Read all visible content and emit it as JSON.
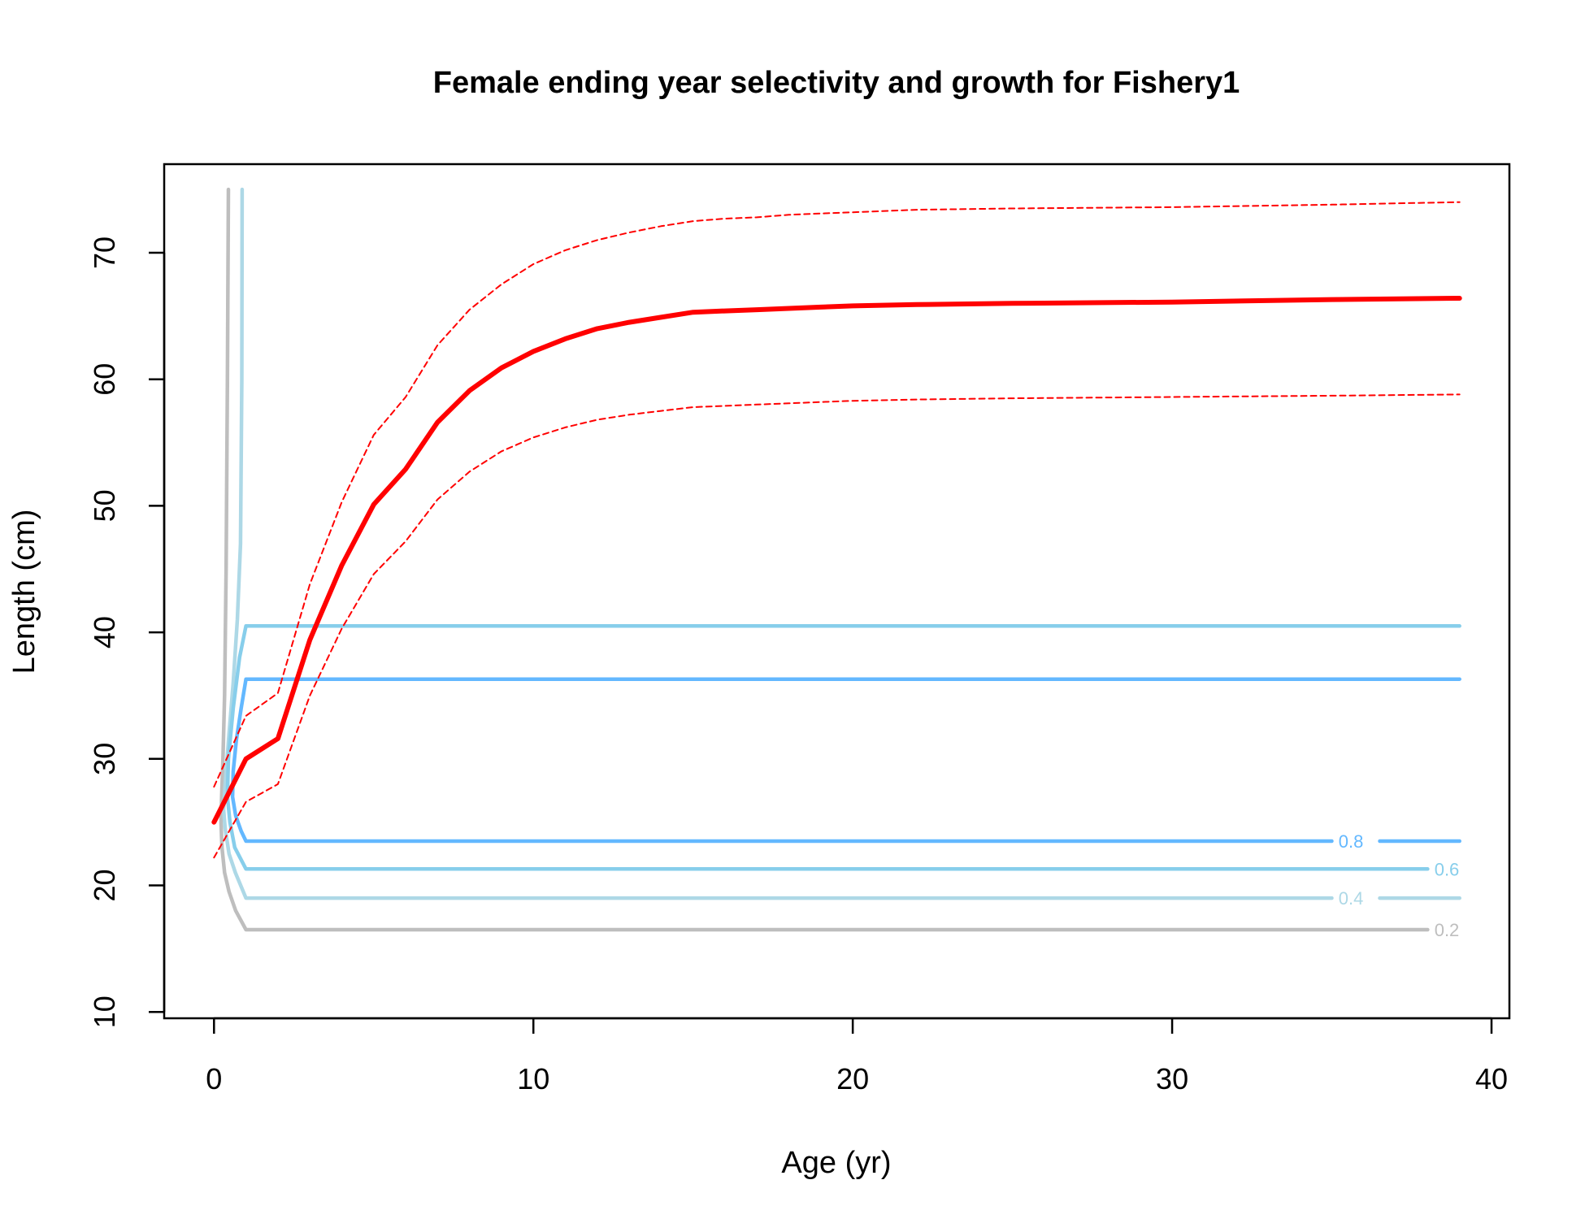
{
  "chart_data": {
    "type": "line",
    "title": "Female ending year selectivity and growth for Fishery1",
    "xlabel": "Age (yr)",
    "ylabel": "Length (cm)",
    "xlim": [
      -1.56,
      40.56
    ],
    "ylim": [
      9.5,
      77.0
    ],
    "xticks": [
      0,
      10,
      20,
      30,
      40
    ],
    "yticks": [
      10,
      20,
      30,
      40,
      50,
      60,
      70
    ],
    "grid": false,
    "legend": "none",
    "growth": {
      "mean": {
        "color": "#ff0000",
        "x": [
          0,
          1,
          2,
          3,
          4,
          5,
          6,
          7,
          8,
          9,
          10,
          11,
          12,
          13,
          14,
          15,
          16,
          17,
          18,
          19,
          20,
          22,
          25,
          30,
          35,
          39
        ],
        "y": [
          25.0,
          30.0,
          31.6,
          39.4,
          45.3,
          50.1,
          52.9,
          56.6,
          59.1,
          60.9,
          62.2,
          63.2,
          64.0,
          64.5,
          64.9,
          65.3,
          65.4,
          65.5,
          65.6,
          65.7,
          65.8,
          65.9,
          66.0,
          66.1,
          66.3,
          66.4
        ]
      },
      "upper": {
        "color": "#ff0000",
        "x": [
          0,
          1,
          2,
          3,
          4,
          5,
          6,
          7,
          8,
          9,
          10,
          11,
          12,
          13,
          14,
          15,
          16,
          17,
          18,
          19,
          20,
          22,
          25,
          30,
          35,
          39
        ],
        "y": [
          27.8,
          33.4,
          35.2,
          43.8,
          50.3,
          55.6,
          58.6,
          62.7,
          65.5,
          67.5,
          69.1,
          70.2,
          71.0,
          71.6,
          72.1,
          72.5,
          72.7,
          72.8,
          73.0,
          73.1,
          73.2,
          73.4,
          73.5,
          73.6,
          73.8,
          74.0
        ]
      },
      "lower": {
        "color": "#ff0000",
        "x": [
          0,
          1,
          2,
          3,
          4,
          5,
          6,
          7,
          8,
          9,
          10,
          11,
          12,
          13,
          14,
          15,
          16,
          17,
          18,
          19,
          20,
          22,
          25,
          30,
          35,
          39
        ],
        "y": [
          22.2,
          26.6,
          28.0,
          35.0,
          40.3,
          44.6,
          47.2,
          50.5,
          52.7,
          54.3,
          55.4,
          56.2,
          56.8,
          57.2,
          57.5,
          57.8,
          57.9,
          58.0,
          58.1,
          58.2,
          58.3,
          58.4,
          58.5,
          58.6,
          58.7,
          58.8
        ]
      }
    },
    "selectivity_contours": [
      {
        "level": "0.2",
        "color": "#bebebe",
        "x": [
          0.45,
          0.42,
          0.38,
          0.33,
          0.28,
          0.24,
          0.22,
          0.25,
          0.33,
          0.47,
          0.68,
          1.0,
          38.0
        ],
        "y": [
          75.0,
          60.0,
          45.0,
          35.0,
          30.0,
          27.0,
          25.0,
          23.0,
          21.0,
          19.5,
          18.0,
          16.5,
          16.5
        ],
        "label_x": 38.6,
        "label_y": 16.5
      },
      {
        "level": "0.4",
        "color": "#add8e6",
        "x": [
          0.88,
          0.87,
          0.83,
          0.73,
          0.6,
          0.47,
          0.35,
          0.3,
          0.35,
          0.47,
          0.67,
          1.0,
          35.0
        ],
        "y": [
          75.0,
          60.0,
          47.0,
          41.0,
          36.0,
          32.0,
          28.0,
          26.0,
          24.5,
          22.5,
          21.0,
          19.0,
          19.0
        ],
        "label_x": 35.6,
        "label_y": 19.0
      },
      {
        "level": "0.4",
        "color": "#add8e6",
        "x": [
          36.5,
          39.0
        ],
        "y": [
          19.0,
          19.0
        ]
      },
      {
        "level": "0.6",
        "color": "#87ceeb",
        "x": [
          39.0,
          1.0,
          0.8,
          0.6,
          0.45,
          0.42,
          0.5,
          0.65,
          1.0,
          38.0
        ],
        "y": [
          40.5,
          40.5,
          38.0,
          34.0,
          30.0,
          27.0,
          25.0,
          23.0,
          21.3,
          21.3
        ],
        "label_x": 38.6,
        "label_y": 21.3
      },
      {
        "level": "0.8",
        "color": "#63b8ff",
        "x": [
          39.0,
          1.0,
          0.85,
          0.7,
          0.6,
          0.58,
          0.68,
          0.85,
          1.0,
          35.0
        ],
        "y": [
          36.3,
          36.3,
          34.0,
          31.5,
          29.0,
          27.0,
          25.5,
          24.3,
          23.5,
          23.5
        ],
        "label_x": 35.6,
        "label_y": 23.5
      },
      {
        "level": "0.8",
        "color": "#63b8ff",
        "x": [
          36.5,
          39.0
        ],
        "y": [
          23.5,
          23.5
        ]
      }
    ]
  }
}
